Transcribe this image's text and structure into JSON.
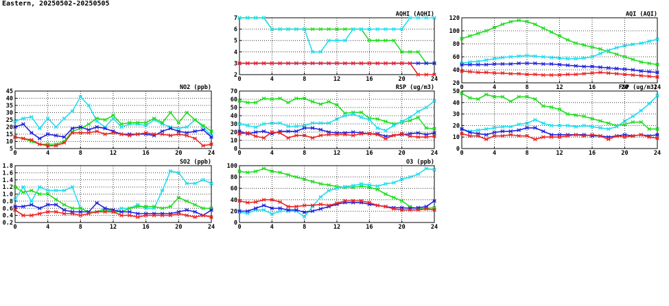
{
  "header": {
    "title": "Eastern, 20250502-20250505"
  },
  "colors": {
    "green": "#22dd22",
    "cyan": "#22ddee",
    "blue": "#2222dd",
    "red": "#ee2222"
  },
  "chart_data": [
    {
      "type": "line",
      "title": "AQHI (AQHI)",
      "xlim": [
        0,
        24
      ],
      "xticks": [
        0,
        4,
        8,
        12,
        16,
        20,
        24
      ],
      "ylim": [
        2,
        7
      ],
      "yticks": [
        2,
        3,
        4,
        5,
        6,
        7
      ],
      "grid": true,
      "x": [
        0,
        1,
        2,
        3,
        4,
        5,
        6,
        7,
        8,
        9,
        10,
        11,
        12,
        13,
        14,
        15,
        16,
        17,
        18,
        19,
        20,
        21,
        22,
        23,
        24
      ],
      "series": [
        {
          "color": "green",
          "values": [
            7,
            7,
            7,
            7,
            6,
            6,
            6,
            6,
            6,
            6,
            6,
            6,
            6,
            6,
            6,
            6,
            5,
            5,
            5,
            5,
            4,
            4,
            4,
            3,
            3
          ]
        },
        {
          "color": "cyan",
          "values": [
            7,
            7,
            7,
            7,
            6,
            6,
            6,
            6,
            6,
            4,
            4,
            5,
            5,
            5,
            6,
            6,
            6,
            6,
            6,
            6,
            6,
            7,
            7,
            7,
            7
          ]
        },
        {
          "color": "blue",
          "values": [
            3,
            3,
            3,
            3,
            3,
            3,
            3,
            3,
            3,
            3,
            3,
            3,
            3,
            3,
            3,
            3,
            3,
            3,
            3,
            3,
            3,
            3,
            3,
            3,
            3
          ]
        },
        {
          "color": "red",
          "values": [
            3,
            3,
            3,
            3,
            3,
            3,
            3,
            3,
            3,
            3,
            3,
            3,
            3,
            3,
            3,
            3,
            3,
            3,
            3,
            3,
            3,
            3,
            2,
            2,
            2
          ]
        }
      ]
    },
    {
      "type": "line",
      "title": "AQI (AQI)",
      "xlim": [
        0,
        24
      ],
      "xticks": [
        0,
        4,
        8,
        12,
        16,
        20,
        24
      ],
      "ylim": [
        20,
        120
      ],
      "yticks": [
        20,
        40,
        60,
        80,
        100,
        120
      ],
      "grid": true,
      "x": [
        0,
        1,
        2,
        3,
        4,
        5,
        6,
        7,
        8,
        9,
        10,
        11,
        12,
        13,
        14,
        15,
        16,
        17,
        18,
        19,
        20,
        21,
        22,
        23,
        24
      ],
      "series": [
        {
          "color": "green",
          "values": [
            88,
            92,
            96,
            100,
            105,
            110,
            114,
            116,
            114,
            110,
            104,
            98,
            92,
            86,
            81,
            78,
            75,
            72,
            68,
            64,
            60,
            56,
            52,
            50,
            48
          ]
        },
        {
          "color": "cyan",
          "values": [
            50,
            52,
            53,
            55,
            57,
            59,
            60,
            61,
            62,
            61,
            60,
            59,
            58,
            57,
            57,
            58,
            60,
            65,
            70,
            74,
            77,
            79,
            81,
            84,
            87
          ]
        },
        {
          "color": "blue",
          "values": [
            48,
            48,
            48,
            48,
            49,
            49,
            49,
            50,
            50,
            50,
            49,
            49,
            48,
            47,
            46,
            45,
            45,
            44,
            43,
            42,
            41,
            40,
            38,
            37,
            36
          ]
        },
        {
          "color": "red",
          "values": [
            38,
            37,
            36,
            36,
            35,
            35,
            34,
            34,
            33,
            33,
            32,
            32,
            32,
            33,
            33,
            34,
            35,
            36,
            35,
            34,
            33,
            32,
            31,
            30,
            29
          ]
        }
      ]
    },
    {
      "type": "line",
      "title": "NO2 (ppb)",
      "xlim": [
        0,
        24
      ],
      "xticks": [
        0,
        4,
        8,
        12,
        16,
        20,
        24
      ],
      "ylim": [
        5,
        45
      ],
      "yticks": [
        5,
        10,
        15,
        20,
        25,
        30,
        35,
        40,
        45
      ],
      "grid": true,
      "x": [
        0,
        1,
        2,
        3,
        4,
        5,
        6,
        7,
        8,
        9,
        10,
        11,
        12,
        13,
        14,
        15,
        16,
        17,
        18,
        19,
        20,
        21,
        22,
        23,
        24
      ],
      "series": [
        {
          "color": "cyan",
          "values": [
            24,
            26,
            27,
            19,
            26,
            20,
            26,
            31,
            41,
            35,
            24,
            20,
            26,
            20,
            22,
            22,
            21,
            25,
            22,
            20,
            19,
            20,
            25,
            20,
            14
          ]
        },
        {
          "color": "green",
          "values": [
            13,
            12,
            10,
            8,
            8,
            8,
            10,
            17,
            19,
            22,
            26,
            25,
            28,
            22,
            23,
            23,
            23,
            26,
            23,
            30,
            23,
            30,
            25,
            21,
            17
          ]
        },
        {
          "color": "blue",
          "values": [
            20,
            22,
            16,
            12,
            15,
            14,
            13,
            19,
            20,
            18,
            20,
            19,
            17,
            15,
            15,
            15,
            15,
            14,
            17,
            19,
            17,
            16,
            17,
            18,
            13
          ]
        },
        {
          "color": "red",
          "values": [
            13,
            12,
            11,
            8,
            7,
            7,
            9,
            16,
            16,
            16,
            17,
            15,
            16,
            15,
            14,
            15,
            16,
            15,
            15,
            14,
            15,
            14,
            12,
            7,
            8
          ]
        }
      ]
    },
    {
      "type": "line",
      "title": "RSP (ug/m3)",
      "xlim": [
        0,
        24
      ],
      "xticks": [
        0,
        4,
        8,
        12,
        16,
        20,
        24
      ],
      "ylim": [
        0,
        70
      ],
      "yticks": [
        0,
        10,
        20,
        30,
        40,
        50,
        60,
        70
      ],
      "grid": true,
      "x": [
        0,
        1,
        2,
        3,
        4,
        5,
        6,
        7,
        8,
        9,
        10,
        11,
        12,
        13,
        14,
        15,
        16,
        17,
        18,
        19,
        20,
        21,
        22,
        23,
        24
      ],
      "series": [
        {
          "color": "green",
          "values": [
            58,
            56,
            56,
            61,
            60,
            61,
            56,
            61,
            61,
            57,
            54,
            57,
            53,
            43,
            44,
            44,
            37,
            36,
            33,
            30,
            32,
            34,
            38,
            25,
            24
          ]
        },
        {
          "color": "cyan",
          "values": [
            30,
            28,
            26,
            30,
            31,
            31,
            27,
            27,
            28,
            31,
            31,
            31,
            36,
            40,
            42,
            38,
            35,
            25,
            22,
            28,
            33,
            38,
            45,
            50,
            58
          ]
        },
        {
          "color": "blue",
          "values": [
            21,
            18,
            20,
            21,
            18,
            21,
            21,
            21,
            25,
            25,
            23,
            20,
            19,
            19,
            20,
            19,
            18,
            18,
            15,
            16,
            17,
            18,
            19,
            17,
            19
          ]
        },
        {
          "color": "red",
          "values": [
            18,
            19,
            15,
            13,
            20,
            19,
            13,
            16,
            16,
            13,
            16,
            17,
            17,
            17,
            16,
            18,
            18,
            17,
            12,
            16,
            18,
            15,
            14,
            14,
            15
          ]
        }
      ]
    },
    {
      "type": "line",
      "title": "FSP (ug/m3)",
      "xlim": [
        0,
        24
      ],
      "xticks": [
        0,
        4,
        8,
        12,
        16,
        20,
        24
      ],
      "ylim": [
        0,
        50
      ],
      "yticks": [
        0,
        10,
        20,
        30,
        40,
        50
      ],
      "grid": true,
      "x": [
        0,
        1,
        2,
        3,
        4,
        5,
        6,
        7,
        8,
        9,
        10,
        11,
        12,
        13,
        14,
        15,
        16,
        17,
        18,
        19,
        20,
        21,
        22,
        23,
        24
      ],
      "series": [
        {
          "color": "green",
          "values": [
            48,
            44,
            43,
            47,
            45,
            45,
            41,
            45,
            45,
            43,
            37,
            36,
            34,
            30,
            29,
            28,
            26,
            24,
            22,
            20,
            21,
            23,
            23,
            17,
            17
          ]
        },
        {
          "color": "cyan",
          "values": [
            17,
            15,
            16,
            17,
            18,
            19,
            19,
            21,
            22,
            25,
            22,
            20,
            20,
            20,
            19,
            20,
            19,
            18,
            17,
            19,
            24,
            28,
            33,
            39,
            46
          ]
        },
        {
          "color": "blue",
          "values": [
            17,
            14,
            13,
            12,
            14,
            15,
            15,
            16,
            18,
            18,
            15,
            12,
            12,
            12,
            12,
            12,
            11,
            11,
            10,
            11,
            12,
            11,
            12,
            11,
            12
          ]
        },
        {
          "color": "red",
          "values": [
            13,
            11,
            11,
            8,
            11,
            11,
            12,
            11,
            11,
            8,
            10,
            10,
            10,
            11,
            12,
            11,
            12,
            11,
            8,
            11,
            10,
            11,
            12,
            10,
            9
          ]
        }
      ]
    },
    {
      "type": "line",
      "title": "SO2 (ppb)",
      "xlim": [
        0,
        24
      ],
      "xticks": [
        0,
        4,
        8,
        12,
        16,
        20,
        24
      ],
      "ylim": [
        0.2,
        1.8
      ],
      "yticks": [
        0.2,
        0.4,
        0.6,
        0.8,
        1.0,
        1.2,
        1.4,
        1.6,
        1.8
      ],
      "grid": true,
      "x": [
        0,
        1,
        2,
        3,
        4,
        5,
        6,
        7,
        8,
        9,
        10,
        11,
        12,
        13,
        14,
        15,
        16,
        17,
        18,
        19,
        20,
        21,
        22,
        23,
        24
      ],
      "series": [
        {
          "color": "cyan",
          "values": [
            0.85,
            1.2,
            0.8,
            1.2,
            1.1,
            1.1,
            1.1,
            1.2,
            0.6,
            0.5,
            0.5,
            0.6,
            0.5,
            0.6,
            0.6,
            0.7,
            0.6,
            0.6,
            1.1,
            1.65,
            1.6,
            1.3,
            1.3,
            1.4,
            1.3
          ]
        },
        {
          "color": "green",
          "values": [
            1.2,
            1.05,
            1.1,
            1.0,
            1.0,
            0.85,
            0.7,
            0.6,
            0.6,
            0.5,
            0.5,
            0.55,
            0.5,
            0.5,
            0.6,
            0.65,
            0.65,
            0.65,
            0.6,
            0.65,
            0.9,
            0.8,
            0.7,
            0.6,
            0.6
          ]
        },
        {
          "color": "blue",
          "values": [
            0.65,
            0.65,
            0.7,
            0.6,
            0.7,
            0.7,
            0.55,
            0.5,
            0.5,
            0.5,
            0.75,
            0.6,
            0.55,
            0.5,
            0.5,
            0.45,
            0.45,
            0.45,
            0.45,
            0.45,
            0.5,
            0.55,
            0.5,
            0.4,
            0.55
          ]
        },
        {
          "color": "red",
          "values": [
            0.55,
            0.4,
            0.4,
            0.45,
            0.5,
            0.5,
            0.45,
            0.45,
            0.4,
            0.45,
            0.5,
            0.5,
            0.5,
            0.4,
            0.4,
            0.35,
            0.4,
            0.4,
            0.4,
            0.4,
            0.45,
            0.4,
            0.35,
            0.4,
            0.35
          ]
        }
      ]
    },
    {
      "type": "line",
      "title": "O3 (ppb)",
      "xlim": [
        0,
        24
      ],
      "xticks": [
        0,
        4,
        8,
        12,
        16,
        20,
        24
      ],
      "ylim": [
        0,
        100
      ],
      "yticks": [
        0,
        20,
        40,
        60,
        80,
        100
      ],
      "grid": true,
      "x": [
        0,
        1,
        2,
        3,
        4,
        5,
        6,
        7,
        8,
        9,
        10,
        11,
        12,
        13,
        14,
        15,
        16,
        17,
        18,
        19,
        20,
        21,
        22,
        23,
        24
      ],
      "series": [
        {
          "color": "green",
          "values": [
            90,
            88,
            90,
            95,
            90,
            88,
            84,
            80,
            76,
            72,
            68,
            66,
            63,
            62,
            62,
            64,
            62,
            58,
            50,
            44,
            38,
            28,
            24,
            25,
            26
          ]
        },
        {
          "color": "cyan",
          "values": [
            18,
            16,
            22,
            22,
            15,
            20,
            20,
            20,
            10,
            28,
            45,
            56,
            60,
            63,
            65,
            68,
            66,
            64,
            68,
            70,
            76,
            80,
            85,
            95,
            93
          ]
        },
        {
          "color": "blue",
          "values": [
            20,
            20,
            25,
            30,
            25,
            25,
            22,
            22,
            18,
            20,
            24,
            28,
            32,
            35,
            35,
            35,
            32,
            30,
            28,
            26,
            26,
            25,
            26,
            28,
            38
          ]
        },
        {
          "color": "red",
          "values": [
            38,
            35,
            36,
            40,
            40,
            36,
            28,
            28,
            30,
            30,
            32,
            30,
            34,
            38,
            38,
            38,
            35,
            30,
            28,
            24,
            22,
            22,
            22,
            24,
            22
          ]
        }
      ]
    }
  ]
}
